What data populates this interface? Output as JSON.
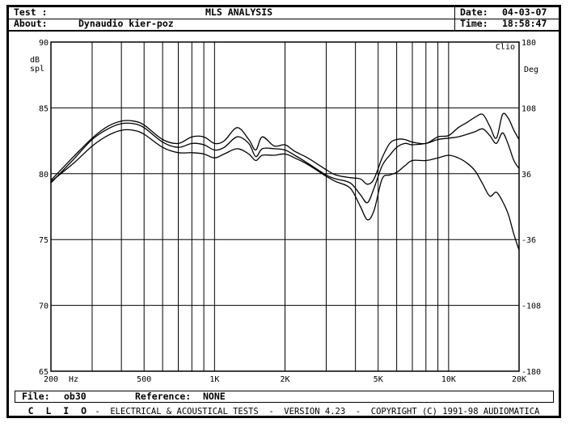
{
  "header": {
    "test_label": "Test :",
    "title": "MLS ANALYSIS",
    "date_label": "Date:",
    "date_value": "04-03-07",
    "about_label": "About:",
    "about_value": "Dynaudio kier-poz",
    "time_label": "Time:",
    "time_value": "18:58:47"
  },
  "file_bar": {
    "file_label": "File:",
    "file_value": "ob30",
    "reference_label": "Reference:",
    "reference_value": "NONE"
  },
  "footer": {
    "brand": "C L I O",
    "text": " -  ELECTRICAL & ACOUSTICAL TESTS  -  VERSION 4.23  -  COPYRIGHT (C) 1991-98 AUDIOMATICA"
  },
  "chart_data": {
    "type": "line",
    "title": "MLS ANALYSIS",
    "corner_label": "Clio",
    "ylabel": "dB spl",
    "y2label": "Deg",
    "x_scale": "log",
    "xlim": [
      200,
      20000
    ],
    "ylim": [
      65,
      90
    ],
    "y2lim": [
      -180,
      180
    ],
    "x_tick_labels": [
      {
        "value": 200,
        "label": "200"
      },
      {
        "value": 500,
        "label": "500"
      },
      {
        "value": 1000,
        "label": "1K"
      },
      {
        "value": 2000,
        "label": "2K"
      },
      {
        "value": 5000,
        "label": "5K"
      },
      {
        "value": 10000,
        "label": "10K"
      },
      {
        "value": 20000,
        "label": "20K"
      }
    ],
    "x_unit": "Hz",
    "y_ticks": [
      65,
      70,
      75,
      80,
      85,
      90
    ],
    "y2_ticks": [
      -180,
      -108,
      -36,
      36,
      108,
      180
    ],
    "grid": true,
    "series": [
      {
        "x": [
          200,
          250,
          300,
          350,
          400,
          450,
          500,
          600,
          700,
          800,
          900,
          1000,
          1100,
          1250,
          1400,
          1500,
          1600,
          1800,
          2000,
          2200,
          2500,
          3000,
          3300,
          3800,
          4200,
          4500,
          4800,
          5200,
          5600,
          6000,
          6500,
          7000,
          8000,
          9000,
          10000,
          11000,
          12000,
          13000,
          14000,
          15000,
          16000,
          17000,
          18000,
          19000,
          20000
        ],
        "y": [
          79.5,
          81.3,
          82.7,
          83.6,
          84.0,
          84.0,
          83.7,
          82.6,
          82.3,
          82.8,
          82.8,
          82.3,
          82.5,
          83.5,
          82.6,
          81.8,
          82.8,
          82.1,
          82.2,
          81.7,
          81.2,
          80.3,
          79.9,
          79.7,
          79.6,
          79.2,
          79.6,
          81.2,
          82.3,
          82.6,
          82.6,
          82.4,
          82.3,
          82.8,
          82.9,
          83.5,
          83.9,
          84.3,
          84.5,
          83.6,
          82.7,
          84.5,
          84.2,
          83.3,
          82.6
        ]
      },
      {
        "x": [
          200,
          250,
          300,
          350,
          400,
          450,
          500,
          600,
          700,
          800,
          900,
          1000,
          1100,
          1250,
          1400,
          1500,
          1600,
          1800,
          2000,
          2200,
          2500,
          3000,
          3300,
          3800,
          4200,
          4500,
          4800,
          5200,
          5600,
          6000,
          6500,
          7000,
          8000,
          9000,
          10000,
          11000,
          12000,
          13000,
          14000,
          15000,
          16000,
          17000,
          18000,
          19000,
          20000
        ],
        "y": [
          79.3,
          81.1,
          82.6,
          83.4,
          83.8,
          83.8,
          83.5,
          82.4,
          82.0,
          82.3,
          82.2,
          81.8,
          82.0,
          82.8,
          82.3,
          81.3,
          81.9,
          81.9,
          81.8,
          81.4,
          80.8,
          79.9,
          79.6,
          79.3,
          78.4,
          77.8,
          78.9,
          80.6,
          81.4,
          82.0,
          82.3,
          82.2,
          82.3,
          82.6,
          82.7,
          82.8,
          83.0,
          83.2,
          83.4,
          82.9,
          82.3,
          83.1,
          82.2,
          81.0,
          80.4
        ]
      },
      {
        "x": [
          200,
          250,
          300,
          350,
          400,
          450,
          500,
          600,
          700,
          800,
          900,
          1000,
          1100,
          1250,
          1400,
          1500,
          1600,
          1800,
          2000,
          2200,
          2500,
          3000,
          3300,
          3800,
          4200,
          4500,
          4800,
          5200,
          5600,
          6000,
          6500,
          7000,
          8000,
          9000,
          10000,
          11000,
          12000,
          13000,
          14000,
          15000,
          16000,
          17000,
          18000,
          19000,
          20000
        ],
        "y": [
          79.4,
          80.8,
          82.1,
          82.9,
          83.3,
          83.3,
          83.0,
          82.0,
          81.6,
          81.6,
          81.5,
          81.2,
          81.5,
          81.9,
          81.5,
          81.0,
          81.4,
          81.4,
          81.5,
          81.2,
          80.7,
          79.8,
          79.4,
          78.9,
          77.5,
          76.5,
          77.2,
          79.6,
          79.9,
          80.1,
          80.6,
          81.0,
          81.0,
          81.2,
          81.4,
          81.2,
          80.8,
          80.2,
          79.2,
          78.3,
          78.6,
          77.9,
          76.9,
          75.4,
          74.2
        ]
      }
    ]
  }
}
